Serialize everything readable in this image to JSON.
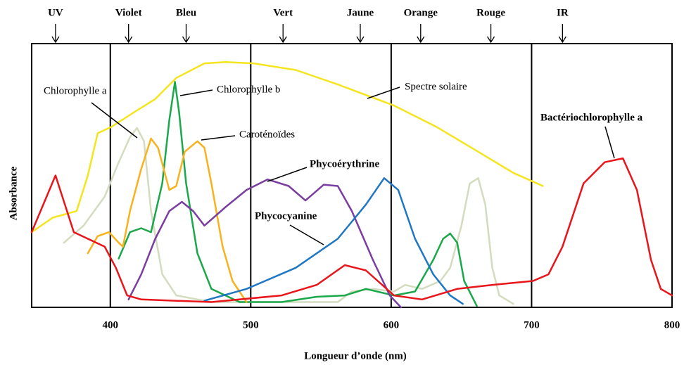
{
  "chart_data": {
    "type": "line",
    "xlabel": "Longueur d’onde (nm)",
    "ylabel": "Absorbance",
    "xlim": [
      344,
      800
    ],
    "ylim": [
      0,
      100
    ],
    "xticks": [
      400,
      500,
      600,
      700,
      800
    ],
    "grid": true,
    "bands": [
      {
        "label": "UV",
        "x": 361
      },
      {
        "label": "Violet",
        "x": 413
      },
      {
        "label": "Bleu",
        "x": 454
      },
      {
        "label": "Vert",
        "x": 523
      },
      {
        "label": "Jaune",
        "x": 578
      },
      {
        "label": "Orange",
        "x": 621
      },
      {
        "label": "Rouge",
        "x": 671
      },
      {
        "label": "IR",
        "x": 722
      }
    ],
    "series": [
      {
        "name": "Spectre solaire",
        "color": "#f5e51e",
        "x": [
          344,
          359,
          376,
          384,
          391,
          401,
          417,
          432,
          447,
          467,
          482,
          502,
          532,
          562,
          602,
          632,
          662,
          687,
          708
        ],
        "values": [
          28.5,
          34,
          36.5,
          50,
          66,
          68.5,
          74,
          79,
          87,
          92.5,
          93,
          92.5,
          90,
          84.5,
          76.5,
          68.5,
          59,
          51,
          46
        ]
      },
      {
        "name": "Chlorophylle a",
        "color": "#d3dcbf",
        "x": [
          367,
          381,
          396,
          406,
          414,
          419,
          424,
          429,
          437,
          447,
          472,
          522,
          562,
          572,
          587,
          602,
          610,
          622,
          635,
          642,
          650,
          656,
          662,
          667,
          672,
          677,
          687
        ],
        "values": [
          24.5,
          31,
          42,
          55,
          64.5,
          68,
          63,
          36.5,
          12.5,
          4.5,
          2,
          2,
          2,
          6,
          7,
          6,
          8.5,
          7,
          10,
          15,
          31,
          47,
          49,
          39,
          15,
          4.5,
          1.3
        ]
      },
      {
        "name": "Chlorophylle b",
        "color": "#1aa84a",
        "x": [
          406,
          414,
          422,
          429,
          437,
          442,
          446,
          449,
          454,
          462,
          472,
          492,
          522,
          547,
          567,
          582,
          602,
          617,
          630,
          637,
          642,
          647,
          652,
          661
        ],
        "values": [
          18.5,
          28.5,
          30,
          28.5,
          47,
          71,
          85.5,
          74,
          47,
          20.5,
          7,
          2,
          2,
          4,
          4.5,
          7,
          4.5,
          6,
          18,
          26,
          28,
          24.5,
          10,
          0.5
        ]
      },
      {
        "name": "Caroténoïdes",
        "color": "#f7b21e",
        "x": [
          384,
          391,
          399,
          406,
          409,
          414,
          422,
          429,
          434,
          442,
          447,
          453,
          462,
          467,
          472,
          480,
          487,
          497
        ],
        "values": [
          20.5,
          27,
          28.5,
          24.5,
          23,
          36.5,
          52.5,
          64,
          60.5,
          44.5,
          46,
          59,
          63,
          60.5,
          47,
          23,
          10,
          2
        ]
      },
      {
        "name": "Phycoérythrine",
        "color": "#7a3ea0",
        "x": [
          413,
          422,
          432,
          442,
          451,
          459,
          467,
          482,
          497,
          512,
          527,
          539,
          552,
          562,
          572,
          587,
          599,
          607
        ],
        "values": [
          3,
          12.5,
          26,
          36.5,
          40,
          36.5,
          31,
          38,
          44.5,
          48.5,
          46,
          40.5,
          46.5,
          46,
          36.5,
          18,
          4.5,
          0
        ]
      },
      {
        "name": "Phycocyanine",
        "color": "#1f77c4",
        "x": [
          467,
          497,
          532,
          562,
          582,
          595,
          605,
          617,
          630,
          642,
          651
        ],
        "values": [
          2.5,
          7,
          15,
          26,
          39,
          49,
          44.5,
          26,
          12.5,
          4.5,
          1.3
        ]
      },
      {
        "name": "Bactériochlorophylle a",
        "color": "#e8151b",
        "x": [
          344,
          361,
          374,
          396,
          404,
          412,
          422,
          472,
          522,
          547,
          567,
          582,
          602,
          622,
          647,
          672,
          701,
          712,
          722,
          737,
          752,
          765,
          775,
          785,
          792,
          800
        ],
        "values": [
          28.5,
          50,
          28.5,
          23,
          15,
          4.5,
          3,
          2,
          4.5,
          8.5,
          16,
          14,
          4.5,
          3,
          7,
          8.5,
          10,
          12.5,
          23,
          47,
          55,
          56.5,
          44.5,
          18,
          7,
          4.5
        ]
      }
    ]
  }
}
